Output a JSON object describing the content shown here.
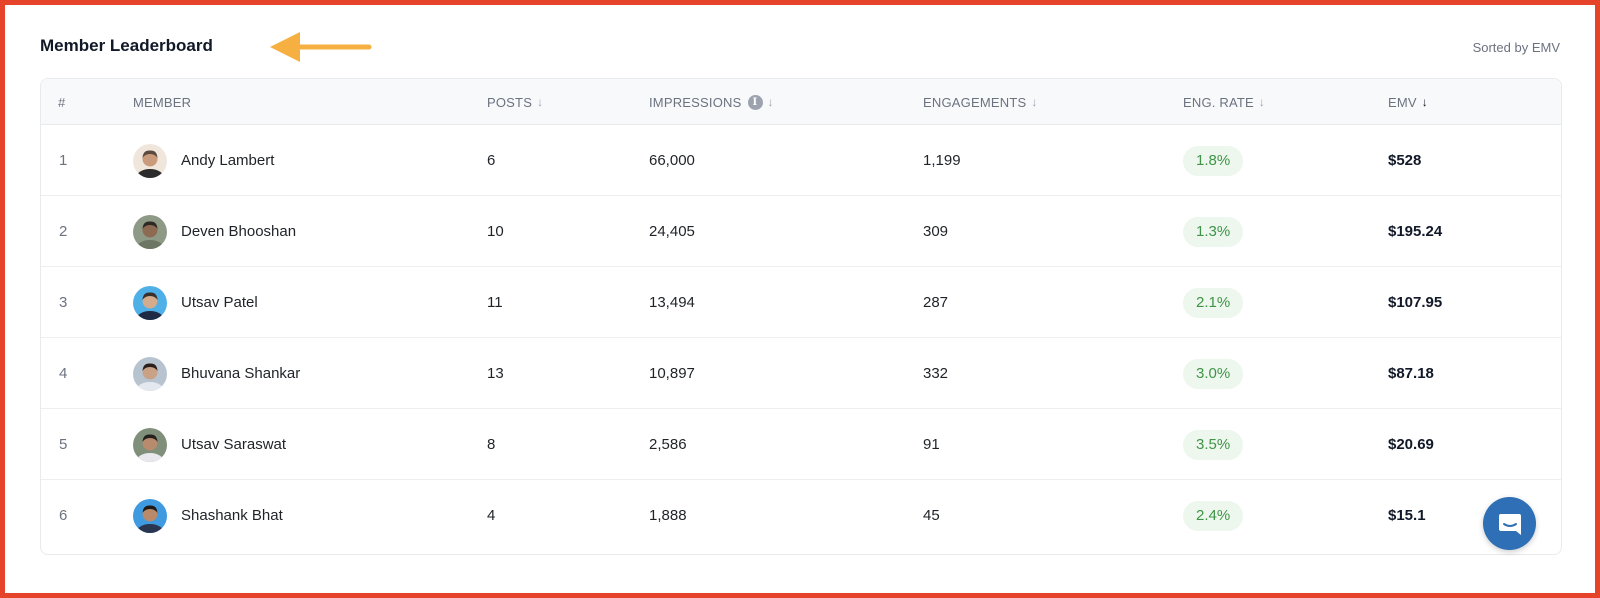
{
  "header": {
    "title": "Member Leaderboard",
    "sorted_label": "Sorted by EMV"
  },
  "table": {
    "columns": {
      "rank": "#",
      "member": "MEMBER",
      "posts": "POSTS",
      "impressions": "IMPRESSIONS",
      "engagements": "ENGAGEMENTS",
      "eng_rate": "ENG. RATE",
      "emv": "EMV"
    },
    "rows": [
      {
        "rank": "1",
        "name": "Andy Lambert",
        "posts": "6",
        "impressions": "66,000",
        "engagements": "1,199",
        "eng_rate": "1.8%",
        "emv": "$528"
      },
      {
        "rank": "2",
        "name": "Deven Bhooshan",
        "posts": "10",
        "impressions": "24,405",
        "engagements": "309",
        "eng_rate": "1.3%",
        "emv": "$195.24"
      },
      {
        "rank": "3",
        "name": "Utsav Patel",
        "posts": "11",
        "impressions": "13,494",
        "engagements": "287",
        "eng_rate": "2.1%",
        "emv": "$107.95"
      },
      {
        "rank": "4",
        "name": "Bhuvana Shankar",
        "posts": "13",
        "impressions": "10,897",
        "engagements": "332",
        "eng_rate": "3.0%",
        "emv": "$87.18"
      },
      {
        "rank": "5",
        "name": "Utsav Saraswat",
        "posts": "8",
        "impressions": "2,586",
        "engagements": "91",
        "eng_rate": "3.5%",
        "emv": "$20.69"
      },
      {
        "rank": "6",
        "name": "Shashank Bhat",
        "posts": "4",
        "impressions": "1,888",
        "engagements": "45",
        "eng_rate": "2.4%",
        "emv": "$15.1"
      }
    ]
  },
  "icons": {
    "annotation_arrow": "arrow-left-icon",
    "info": "info-icon",
    "sort": "arrow-down-icon",
    "chat": "chat-icon"
  },
  "colors": {
    "frame_border": "#e5442b",
    "arrow": "#f5b041",
    "badge_bg": "#edf7ee",
    "badge_text": "#3f9448",
    "chat_button": "#2f6fb6"
  }
}
